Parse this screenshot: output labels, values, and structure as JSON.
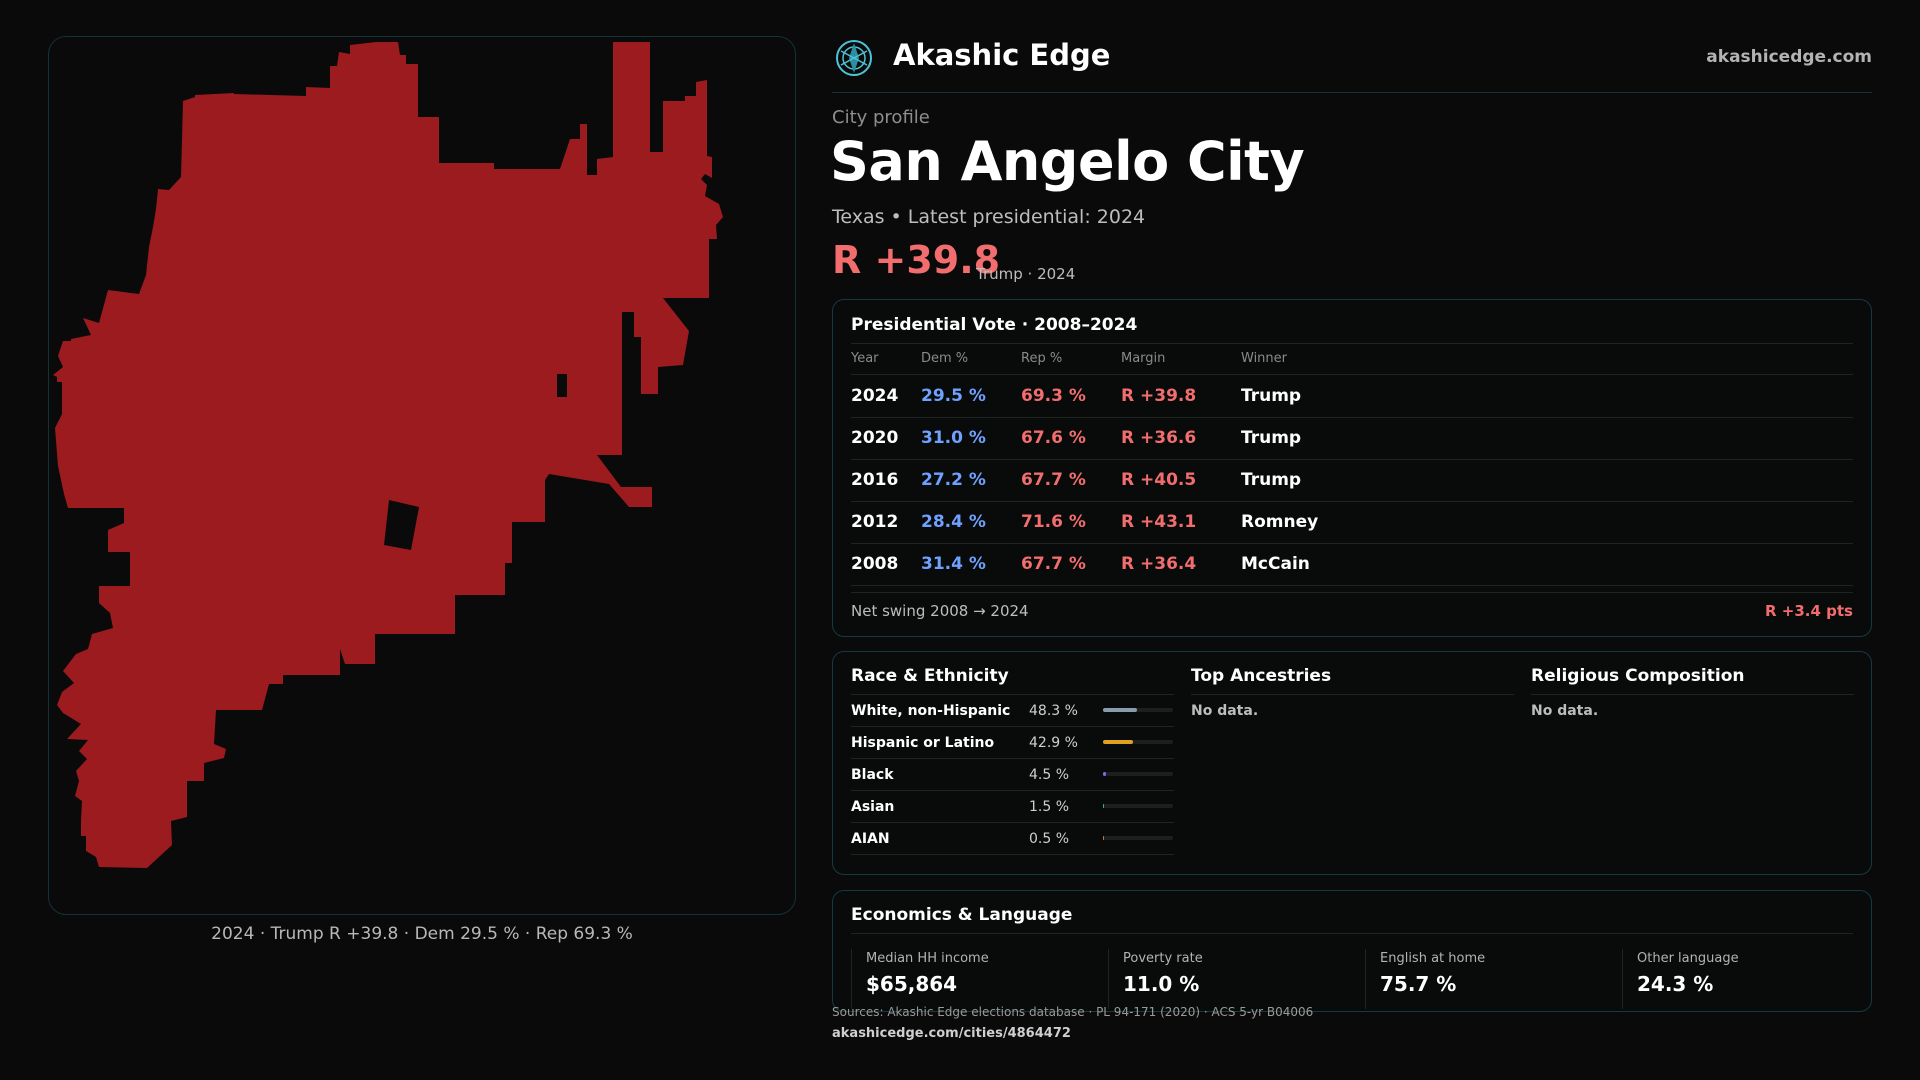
{
  "brand": {
    "name": "Akashic Edge",
    "site": "akashicedge.com",
    "logo_icon": "compass-globe-icon"
  },
  "profile": {
    "kicker": "City profile",
    "city": "San Angelo City",
    "subtitle": "Texas • Latest presidential: 2024",
    "margin": "R +39.8",
    "margin_note": "Trump · 2024",
    "margin_color": "#f26d6d"
  },
  "map": {
    "caption": "2024 · Trump R +39.8 · Dem 29.5 % · Rep 69.3 %",
    "fill_color": "#9b1b1e"
  },
  "vote": {
    "title": "Presidential Vote · 2008–2024",
    "headers": {
      "year": "Year",
      "dem": "Dem %",
      "rep": "Rep %",
      "margin": "Margin",
      "winner": "Winner"
    },
    "rows": [
      {
        "year": "2024",
        "dem": "29.5 %",
        "rep": "69.3 %",
        "margin": "R +39.8",
        "winner": "Trump"
      },
      {
        "year": "2020",
        "dem": "31.0 %",
        "rep": "67.6 %",
        "margin": "R +36.6",
        "winner": "Trump"
      },
      {
        "year": "2016",
        "dem": "27.2 %",
        "rep": "67.7 %",
        "margin": "R +40.5",
        "winner": "Trump"
      },
      {
        "year": "2012",
        "dem": "28.4 %",
        "rep": "71.6 %",
        "margin": "R +43.1",
        "winner": "Romney"
      },
      {
        "year": "2008",
        "dem": "31.4 %",
        "rep": "67.7 %",
        "margin": "R +36.4",
        "winner": "McCain"
      }
    ],
    "swing_label": "Net swing 2008 → 2024",
    "swing_value": "R +3.4 pts"
  },
  "race": {
    "title": "Race & Ethnicity",
    "rows": [
      {
        "label": "White, non-Hispanic",
        "value": "48.3 %",
        "pct": 48.3,
        "color": "#8a9bb0"
      },
      {
        "label": "Hispanic or Latino",
        "value": "42.9 %",
        "pct": 42.9,
        "color": "#e0a020"
      },
      {
        "label": "Black",
        "value": "4.5 %",
        "pct": 4.5,
        "color": "#7b6cf0"
      },
      {
        "label": "Asian",
        "value": "1.5 %",
        "pct": 1.5,
        "color": "#2bb3a0"
      },
      {
        "label": "AIAN",
        "value": "0.5 %",
        "pct": 0.5,
        "color": "#c07a3a"
      }
    ]
  },
  "ancestries": {
    "title": "Top Ancestries",
    "empty": "No data."
  },
  "religion": {
    "title": "Religious Composition",
    "empty": "No data."
  },
  "econ": {
    "title": "Economics & Language",
    "stats": [
      {
        "label": "Median HH income",
        "value": "$65,864"
      },
      {
        "label": "Poverty rate",
        "value": "11.0 %"
      },
      {
        "label": "English at home",
        "value": "75.7 %"
      },
      {
        "label": "Other language",
        "value": "24.3 %"
      }
    ]
  },
  "footer": {
    "sources": "Sources: Akashic Edge elections database · PL 94-171 (2020) · ACS 5-yr B04006",
    "url": "akashicedge.com/cities/4864472"
  }
}
